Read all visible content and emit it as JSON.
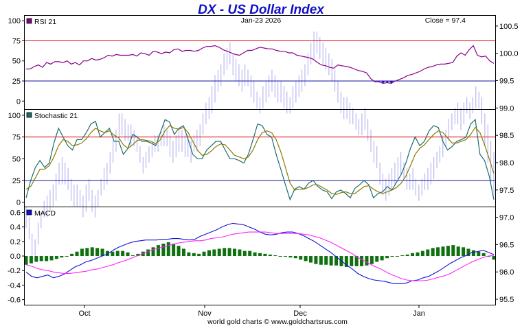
{
  "header": {
    "title": "DX  -  US Dollar Index",
    "date": "Jan-23  2026",
    "close": "Close = 97.4"
  },
  "footer": {
    "credit": "world gold charts © www.goldchartsrus.com"
  },
  "colors": {
    "title": "#1010c8",
    "price_bars": "#aaaaee",
    "rsi": "#880088",
    "rsi_fill": "#1010c8",
    "stoch_k": "#1c6b70",
    "stoch_d": "#8a7a00",
    "macd": "#1010d8",
    "signal": "#ff20ff",
    "histogram": "#107010",
    "overbought": "#dd0000",
    "oversold": "#1010a0"
  },
  "chart_data": {
    "type": "line",
    "x_labels": [
      "Oct",
      "Nov",
      "Dec",
      "Jan"
    ],
    "price_axis": {
      "label_side": "right",
      "range": [
        95.4,
        100.7
      ],
      "ticks": [
        "100.5",
        "100.0",
        "99.5",
        "99.0",
        "98.5",
        "98.0",
        "97.5",
        "97.0",
        "96.5",
        "96.0",
        "95.5"
      ]
    },
    "panels": [
      {
        "name": "RSI 21",
        "type": "line",
        "range": [
          -10,
          107
        ],
        "ticks": [
          "100",
          "75",
          "50",
          "25",
          "0"
        ],
        "levels": [
          75,
          25
        ],
        "values": [
          40,
          40,
          43,
          45,
          42,
          48,
          46,
          49,
          49,
          48,
          50,
          46,
          48,
          45,
          50,
          50,
          53,
          51,
          52,
          54,
          57,
          56,
          58,
          57,
          57,
          57,
          58,
          56,
          60,
          59,
          57,
          62,
          61,
          59,
          61,
          60,
          64,
          65,
          62,
          63,
          63,
          62,
          63,
          66,
          68,
          68,
          69,
          67,
          64,
          62,
          60,
          58,
          57,
          60,
          63,
          63,
          65,
          67,
          66,
          65,
          65,
          63,
          62,
          62,
          60,
          60,
          57,
          56,
          55,
          54,
          52,
          48,
          45,
          44,
          42,
          41,
          45,
          44,
          43,
          42,
          40,
          38,
          37,
          35,
          28,
          24,
          24,
          22,
          23,
          22,
          25,
          27,
          29,
          32,
          33,
          35,
          37,
          40,
          42,
          43,
          45,
          46,
          46,
          47,
          48,
          56,
          60,
          57,
          64,
          69,
          57,
          55,
          56,
          50,
          47
        ]
      },
      {
        "name": "Stochastic 21",
        "type": "line",
        "range": [
          -5,
          107
        ],
        "ticks": [
          "100",
          "75",
          "50",
          "25",
          "0"
        ],
        "levels": [
          75,
          25
        ],
        "series": [
          {
            "name": "Stochastic 21",
            "values": [
              5,
              25,
              40,
              48,
              40,
              45,
              68,
              85,
              75,
              65,
              60,
              72,
              72,
              80,
              90,
              93,
              75,
              80,
              85,
              70,
              70,
              55,
              62,
              78,
              75,
              70,
              70,
              68,
              65,
              80,
              95,
              92,
              78,
              85,
              88,
              72,
              55,
              50,
              50,
              60,
              65,
              70,
              70,
              60,
              50,
              50,
              48,
              45,
              55,
              72,
              90,
              88,
              78,
              75,
              55,
              38,
              20,
              3,
              15,
              18,
              15,
              22,
              25,
              18,
              14,
              12,
              4,
              12,
              14,
              10,
              5,
              16,
              20,
              25,
              20,
              5,
              10,
              12,
              18,
              14,
              23,
              32,
              45,
              62,
              75,
              65,
              70,
              82,
              88,
              86,
              70,
              60,
              64,
              70,
              72,
              75,
              90,
              95,
              55,
              48,
              30,
              3
            ]
          },
          {
            "name": "",
            "values": [
              15,
              18,
              28,
              38,
              38,
              42,
              52,
              65,
              72,
              70,
              65,
              66,
              68,
              73,
              80,
              85,
              82,
              80,
              82,
              77,
              74,
              66,
              62,
              66,
              71,
              72,
              71,
              70,
              67,
              72,
              82,
              88,
              85,
              84,
              86,
              80,
              70,
              60,
              54,
              55,
              59,
              64,
              67,
              66,
              60,
              54,
              52,
              50,
              52,
              60,
              72,
              80,
              82,
              80,
              72,
              58,
              40,
              22,
              14,
              15,
              15,
              17,
              20,
              20,
              17,
              14,
              10,
              9,
              11,
              12,
              10,
              10,
              14,
              18,
              19,
              15,
              12,
              10,
              12,
              14,
              17,
              22,
              30,
              42,
              55,
              62,
              66,
              72,
              78,
              82,
              80,
              74,
              68,
              68,
              70,
              72,
              78,
              86,
              80,
              66,
              50,
              33
            ]
          }
        ]
      },
      {
        "name": "MACD",
        "type": "line",
        "range": [
          -0.67,
          0.68
        ],
        "ticks": [
          "0.6",
          "0.4",
          "0.2",
          "0.0",
          "-0.2",
          "-0.4",
          "-0.6"
        ],
        "series": [
          {
            "name": "MACD",
            "values": [
              -0.22,
              -0.28,
              -0.3,
              -0.28,
              -0.26,
              -0.3,
              -0.28,
              -0.25,
              -0.2,
              -0.15,
              -0.12,
              -0.08,
              -0.06,
              -0.03,
              0.0,
              0.03,
              0.08,
              0.12,
              0.15,
              0.18,
              0.2,
              0.21,
              0.22,
              0.22,
              0.22,
              0.23,
              0.23,
              0.24,
              0.24,
              0.23,
              0.22,
              0.23,
              0.27,
              0.3,
              0.33,
              0.36,
              0.4,
              0.43,
              0.45,
              0.44,
              0.43,
              0.4,
              0.37,
              0.33,
              0.3,
              0.29,
              0.3,
              0.32,
              0.33,
              0.33,
              0.31,
              0.28,
              0.24,
              0.2,
              0.15,
              0.1,
              0.05,
              -0.01,
              -0.07,
              -0.13,
              -0.18,
              -0.24,
              -0.28,
              -0.31,
              -0.33,
              -0.34,
              -0.35,
              -0.37,
              -0.38,
              -0.38,
              -0.37,
              -0.34,
              -0.33,
              -0.3,
              -0.28,
              -0.24,
              -0.2,
              -0.15,
              -0.1,
              -0.06,
              -0.02,
              0.01,
              0.05,
              0.06,
              0.08,
              0.05,
              0.02
            ]
          },
          {
            "name": "",
            "values": [
              -0.12,
              -0.14,
              -0.17,
              -0.19,
              -0.2,
              -0.22,
              -0.23,
              -0.24,
              -0.24,
              -0.23,
              -0.22,
              -0.21,
              -0.19,
              -0.18,
              -0.16,
              -0.14,
              -0.12,
              -0.09,
              -0.07,
              -0.04,
              -0.01,
              0.02,
              0.05,
              0.08,
              0.1,
              0.12,
              0.14,
              0.16,
              0.18,
              0.19,
              0.2,
              0.21,
              0.21,
              0.22,
              0.24,
              0.25,
              0.26,
              0.28,
              0.3,
              0.31,
              0.32,
              0.33,
              0.33,
              0.33,
              0.33,
              0.32,
              0.31,
              0.31,
              0.31,
              0.31,
              0.31,
              0.3,
              0.29,
              0.27,
              0.25,
              0.22,
              0.19,
              0.15,
              0.11,
              0.07,
              0.03,
              -0.02,
              -0.06,
              -0.1,
              -0.14,
              -0.17,
              -0.21,
              -0.25,
              -0.28,
              -0.31,
              -0.33,
              -0.34,
              -0.34,
              -0.34,
              -0.33,
              -0.31,
              -0.29,
              -0.27,
              -0.24,
              -0.2,
              -0.16,
              -0.12,
              -0.08,
              -0.05,
              -0.02,
              0.0,
              0.01
            ]
          }
        ],
        "histogram": [
          -0.12,
          -0.1,
          -0.08,
          -0.07,
          -0.07,
          -0.06,
          -0.04,
          -0.02,
          0.0,
          0.03,
          0.06,
          0.1,
          0.11,
          0.12,
          0.11,
          0.1,
          0.07,
          0.06,
          0.07,
          0.07,
          0.05,
          0.01,
          0.03,
          0.06,
          0.09,
          0.12,
          0.15,
          0.17,
          0.19,
          0.17,
          0.14,
          0.1,
          0.05,
          0.04,
          0.03,
          0.06,
          0.08,
          0.09,
          0.1,
          0.11,
          0.11,
          0.1,
          0.09,
          0.07,
          0.07,
          0.05,
          0.04,
          0.03,
          0.02,
          0.01,
          0.0,
          -0.01,
          -0.02,
          -0.03,
          -0.05,
          -0.07,
          -0.09,
          -0.11,
          -0.12,
          -0.12,
          -0.13,
          -0.13,
          -0.14,
          -0.15,
          -0.14,
          -0.14,
          -0.14,
          -0.13,
          -0.11,
          -0.08,
          -0.06,
          -0.03,
          -0.01,
          0.0,
          0.01,
          0.02,
          0.04,
          0.05,
          0.07,
          0.09,
          0.11,
          0.12,
          0.13,
          0.14,
          0.15,
          0.13,
          0.12,
          0.1,
          0.08,
          0.06,
          0.04,
          -0.01,
          -0.05
        ]
      }
    ],
    "price_bars": [
      [
        97.2,
        96.8
      ],
      [
        97.0,
        96.6
      ],
      [
        96.7,
        96.3
      ],
      [
        96.6,
        96.3
      ],
      [
        96.9,
        96.5
      ],
      [
        97.1,
        96.8
      ],
      [
        97.3,
        97.0
      ],
      [
        97.4,
        97.0
      ],
      [
        97.5,
        97.1
      ],
      [
        97.6,
        97.2
      ],
      [
        97.8,
        97.3
      ],
      [
        98.0,
        97.6
      ],
      [
        98.1,
        97.6
      ],
      [
        98.0,
        97.6
      ],
      [
        97.9,
        97.5
      ],
      [
        97.7,
        97.3
      ],
      [
        97.6,
        97.2
      ],
      [
        97.6,
        97.2
      ],
      [
        97.5,
        97.2
      ],
      [
        97.4,
        97.0
      ],
      [
        97.6,
        97.1
      ],
      [
        97.7,
        97.3
      ],
      [
        97.5,
        97.1
      ],
      [
        97.4,
        97.0
      ],
      [
        97.5,
        97.2
      ],
      [
        97.7,
        97.4
      ],
      [
        97.9,
        97.5
      ],
      [
        98.0,
        97.6
      ],
      [
        98.2,
        97.8
      ],
      [
        98.4,
        98.0
      ],
      [
        98.6,
        98.2
      ],
      [
        98.9,
        98.4
      ],
      [
        98.9,
        98.5
      ],
      [
        98.8,
        98.4
      ],
      [
        98.7,
        98.4
      ],
      [
        98.7,
        98.3
      ],
      [
        98.6,
        98.3
      ],
      [
        98.5,
        98.2
      ],
      [
        98.3,
        98.0
      ],
      [
        98.1,
        97.8
      ],
      [
        98.2,
        97.9
      ],
      [
        98.3,
        98.0
      ],
      [
        98.4,
        98.1
      ],
      [
        98.5,
        98.2
      ],
      [
        98.5,
        98.2
      ],
      [
        98.6,
        98.3
      ],
      [
        98.7,
        98.3
      ],
      [
        98.6,
        98.3
      ],
      [
        98.5,
        98.1
      ],
      [
        98.4,
        98.0
      ],
      [
        98.5,
        98.1
      ],
      [
        98.6,
        98.2
      ],
      [
        98.6,
        98.2
      ],
      [
        98.5,
        98.1
      ],
      [
        98.5,
        98.1
      ],
      [
        98.4,
        98.0
      ],
      [
        98.5,
        98.2
      ],
      [
        98.6,
        98.2
      ],
      [
        98.7,
        98.3
      ],
      [
        98.9,
        98.5
      ],
      [
        99.1,
        98.7
      ],
      [
        99.2,
        98.8
      ],
      [
        99.4,
        98.9
      ],
      [
        99.6,
        99.1
      ],
      [
        99.7,
        99.3
      ],
      [
        99.8,
        99.4
      ],
      [
        100.0,
        99.6
      ],
      [
        100.1,
        99.7
      ],
      [
        100.2,
        99.8
      ],
      [
        100.0,
        99.6
      ],
      [
        99.9,
        99.5
      ],
      [
        99.8,
        99.4
      ],
      [
        99.7,
        99.3
      ],
      [
        99.8,
        99.4
      ],
      [
        99.7,
        99.4
      ],
      [
        99.6,
        99.2
      ],
      [
        99.5,
        99.1
      ],
      [
        99.3,
        99.0
      ],
      [
        99.2,
        98.9
      ],
      [
        99.4,
        99.0
      ],
      [
        99.5,
        99.1
      ],
      [
        99.6,
        99.2
      ],
      [
        99.7,
        99.3
      ],
      [
        99.6,
        99.2
      ],
      [
        99.5,
        99.1
      ],
      [
        99.5,
        99.1
      ],
      [
        99.4,
        99.0
      ],
      [
        99.3,
        98.9
      ],
      [
        99.2,
        98.9
      ],
      [
        99.4,
        99.0
      ],
      [
        99.5,
        99.1
      ],
      [
        99.6,
        99.2
      ],
      [
        99.7,
        99.3
      ],
      [
        99.8,
        99.4
      ],
      [
        100.0,
        99.6
      ],
      [
        100.2,
        99.8
      ],
      [
        100.4,
        99.9
      ],
      [
        100.4,
        100.0
      ],
      [
        100.3,
        99.9
      ],
      [
        100.2,
        99.8
      ],
      [
        100.1,
        99.7
      ],
      [
        100.0,
        99.6
      ],
      [
        99.9,
        99.5
      ],
      [
        99.7,
        99.3
      ],
      [
        99.5,
        99.1
      ],
      [
        99.3,
        98.9
      ],
      [
        99.2,
        98.8
      ],
      [
        99.2,
        98.8
      ],
      [
        99.1,
        98.7
      ],
      [
        99.0,
        98.7
      ],
      [
        98.9,
        98.6
      ],
      [
        98.8,
        98.5
      ],
      [
        98.9,
        98.5
      ],
      [
        99.0,
        98.6
      ],
      [
        98.8,
        98.4
      ],
      [
        98.6,
        98.2
      ],
      [
        98.4,
        98.0
      ],
      [
        98.3,
        97.9
      ],
      [
        98.0,
        97.6
      ],
      [
        97.8,
        97.4
      ],
      [
        97.7,
        97.3
      ],
      [
        97.8,
        97.4
      ],
      [
        97.9,
        97.5
      ],
      [
        98.0,
        97.6
      ],
      [
        98.1,
        97.7
      ],
      [
        98.2,
        97.8
      ],
      [
        98.0,
        97.7
      ],
      [
        97.9,
        97.5
      ],
      [
        97.8,
        97.5
      ],
      [
        97.9,
        97.5
      ],
      [
        97.7,
        97.4
      ],
      [
        97.6,
        97.3
      ],
      [
        97.7,
        97.4
      ],
      [
        97.8,
        97.5
      ],
      [
        97.9,
        97.5
      ],
      [
        98.0,
        97.6
      ],
      [
        98.1,
        97.7
      ],
      [
        98.2,
        97.9
      ],
      [
        98.3,
        98.0
      ],
      [
        98.5,
        98.1
      ],
      [
        98.6,
        98.3
      ],
      [
        98.8,
        98.4
      ],
      [
        98.9,
        98.6
      ],
      [
        99.0,
        98.7
      ],
      [
        99.1,
        98.7
      ],
      [
        99.0,
        98.6
      ],
      [
        99.1,
        98.7
      ],
      [
        99.2,
        98.9
      ],
      [
        99.1,
        98.8
      ],
      [
        99.2,
        98.9
      ],
      [
        99.4,
        99.0
      ],
      [
        99.3,
        99.0
      ],
      [
        99.2,
        98.7
      ],
      [
        98.9,
        98.3
      ],
      [
        98.7,
        98.0
      ],
      [
        98.4,
        97.6
      ],
      [
        98.2,
        97.4
      ]
    ]
  }
}
